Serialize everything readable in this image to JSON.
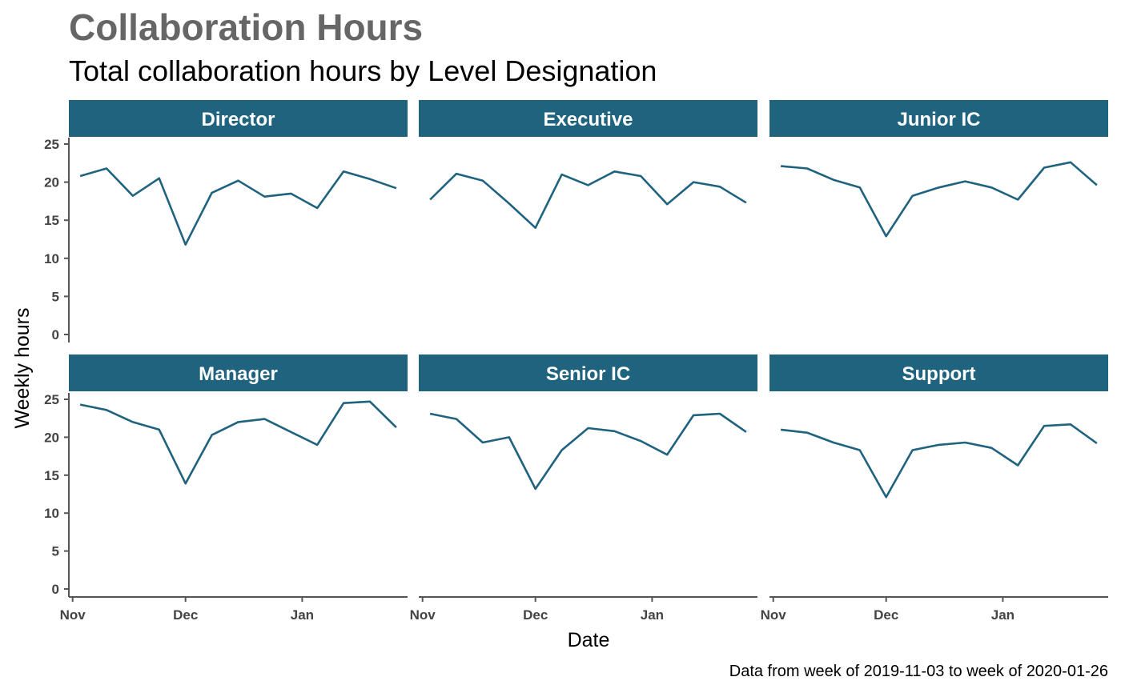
{
  "colors": {
    "accent": "#1f637f",
    "title": "#666666",
    "axis": "#555555"
  },
  "chart_data": {
    "type": "line",
    "title": "Collaboration Hours",
    "subtitle": "Total collaboration hours by Level Designation",
    "xlabel": "Date",
    "ylabel": "Weekly hours",
    "caption": "Data from week of 2019-11-03 to week of 2020-01-26",
    "x": [
      "2019-11-03",
      "2019-11-10",
      "2019-11-17",
      "2019-11-24",
      "2019-12-01",
      "2019-12-08",
      "2019-12-15",
      "2019-12-22",
      "2019-12-29",
      "2020-01-05",
      "2020-01-12",
      "2020-01-19",
      "2020-01-26"
    ],
    "x_ticks": [
      {
        "date": "2019-11-01",
        "label": "Nov"
      },
      {
        "date": "2019-12-01",
        "label": "Dec"
      },
      {
        "date": "2020-01-01",
        "label": "Jan"
      }
    ],
    "xlim": [
      "2019-10-31",
      "2020-01-29"
    ],
    "ylim": [
      0,
      25
    ],
    "y_ticks": [
      0,
      5,
      10,
      15,
      20,
      25
    ],
    "grid": false,
    "facets": [
      {
        "name": "Director",
        "values": [
          20.8,
          21.8,
          18.2,
          20.5,
          11.8,
          18.6,
          20.2,
          18.1,
          18.5,
          16.6,
          21.4,
          20.4,
          19.2
        ]
      },
      {
        "name": "Executive",
        "values": [
          17.7,
          21.1,
          20.2,
          17.2,
          14.0,
          21.0,
          19.6,
          21.4,
          20.8,
          17.1,
          20.0,
          19.4,
          17.3
        ]
      },
      {
        "name": "Junior IC",
        "values": [
          22.1,
          21.8,
          20.3,
          19.3,
          12.9,
          18.2,
          19.3,
          20.1,
          19.3,
          17.7,
          21.9,
          22.6,
          19.6
        ]
      },
      {
        "name": "Manager",
        "values": [
          24.3,
          23.6,
          22.0,
          21.0,
          13.9,
          20.3,
          22.0,
          22.4,
          20.7,
          19.0,
          24.5,
          24.7,
          21.3
        ]
      },
      {
        "name": "Senior IC",
        "values": [
          23.1,
          22.4,
          19.3,
          20.0,
          13.2,
          18.3,
          21.2,
          20.8,
          19.5,
          17.7,
          22.9,
          23.1,
          20.7
        ]
      },
      {
        "name": "Support",
        "values": [
          21.0,
          20.6,
          19.3,
          18.3,
          12.1,
          18.3,
          19.0,
          19.3,
          18.6,
          16.3,
          21.5,
          21.7,
          19.2
        ]
      }
    ]
  }
}
